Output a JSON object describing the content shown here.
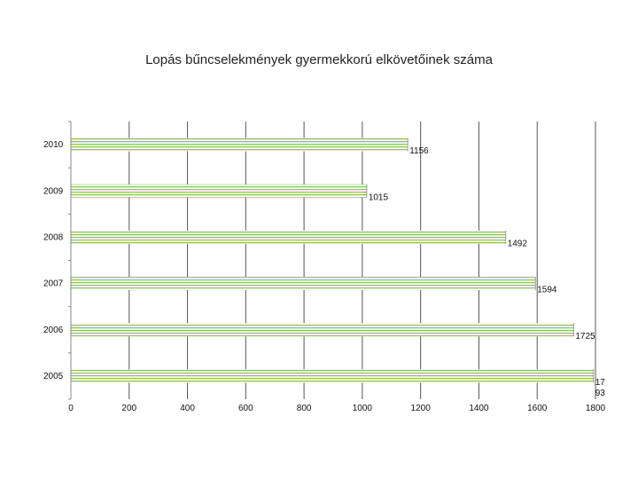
{
  "chart_data": {
    "type": "bar",
    "orientation": "horizontal",
    "title": "Lopás bűncselekmények gyermekkorú elkövetőinek száma",
    "xlabel": "",
    "ylabel": "",
    "categories": [
      "2010",
      "2009",
      "2008",
      "2007",
      "2006",
      "2005"
    ],
    "values": [
      1156,
      1015,
      1492,
      1594,
      1725,
      1793
    ],
    "data_labels": [
      "1156",
      "1015",
      "1492",
      "1594",
      "1725",
      "17\n93"
    ],
    "xlim": [
      0,
      1800
    ],
    "xticks": [
      "0",
      "200",
      "400",
      "600",
      "800",
      "1000",
      "1200",
      "1400",
      "1600",
      "1800"
    ],
    "grid": "vertical",
    "legend": "none",
    "bar_color": "#8fbf5f",
    "bar_stripe_color": "#ffffff",
    "gridline_color": "#555555"
  }
}
